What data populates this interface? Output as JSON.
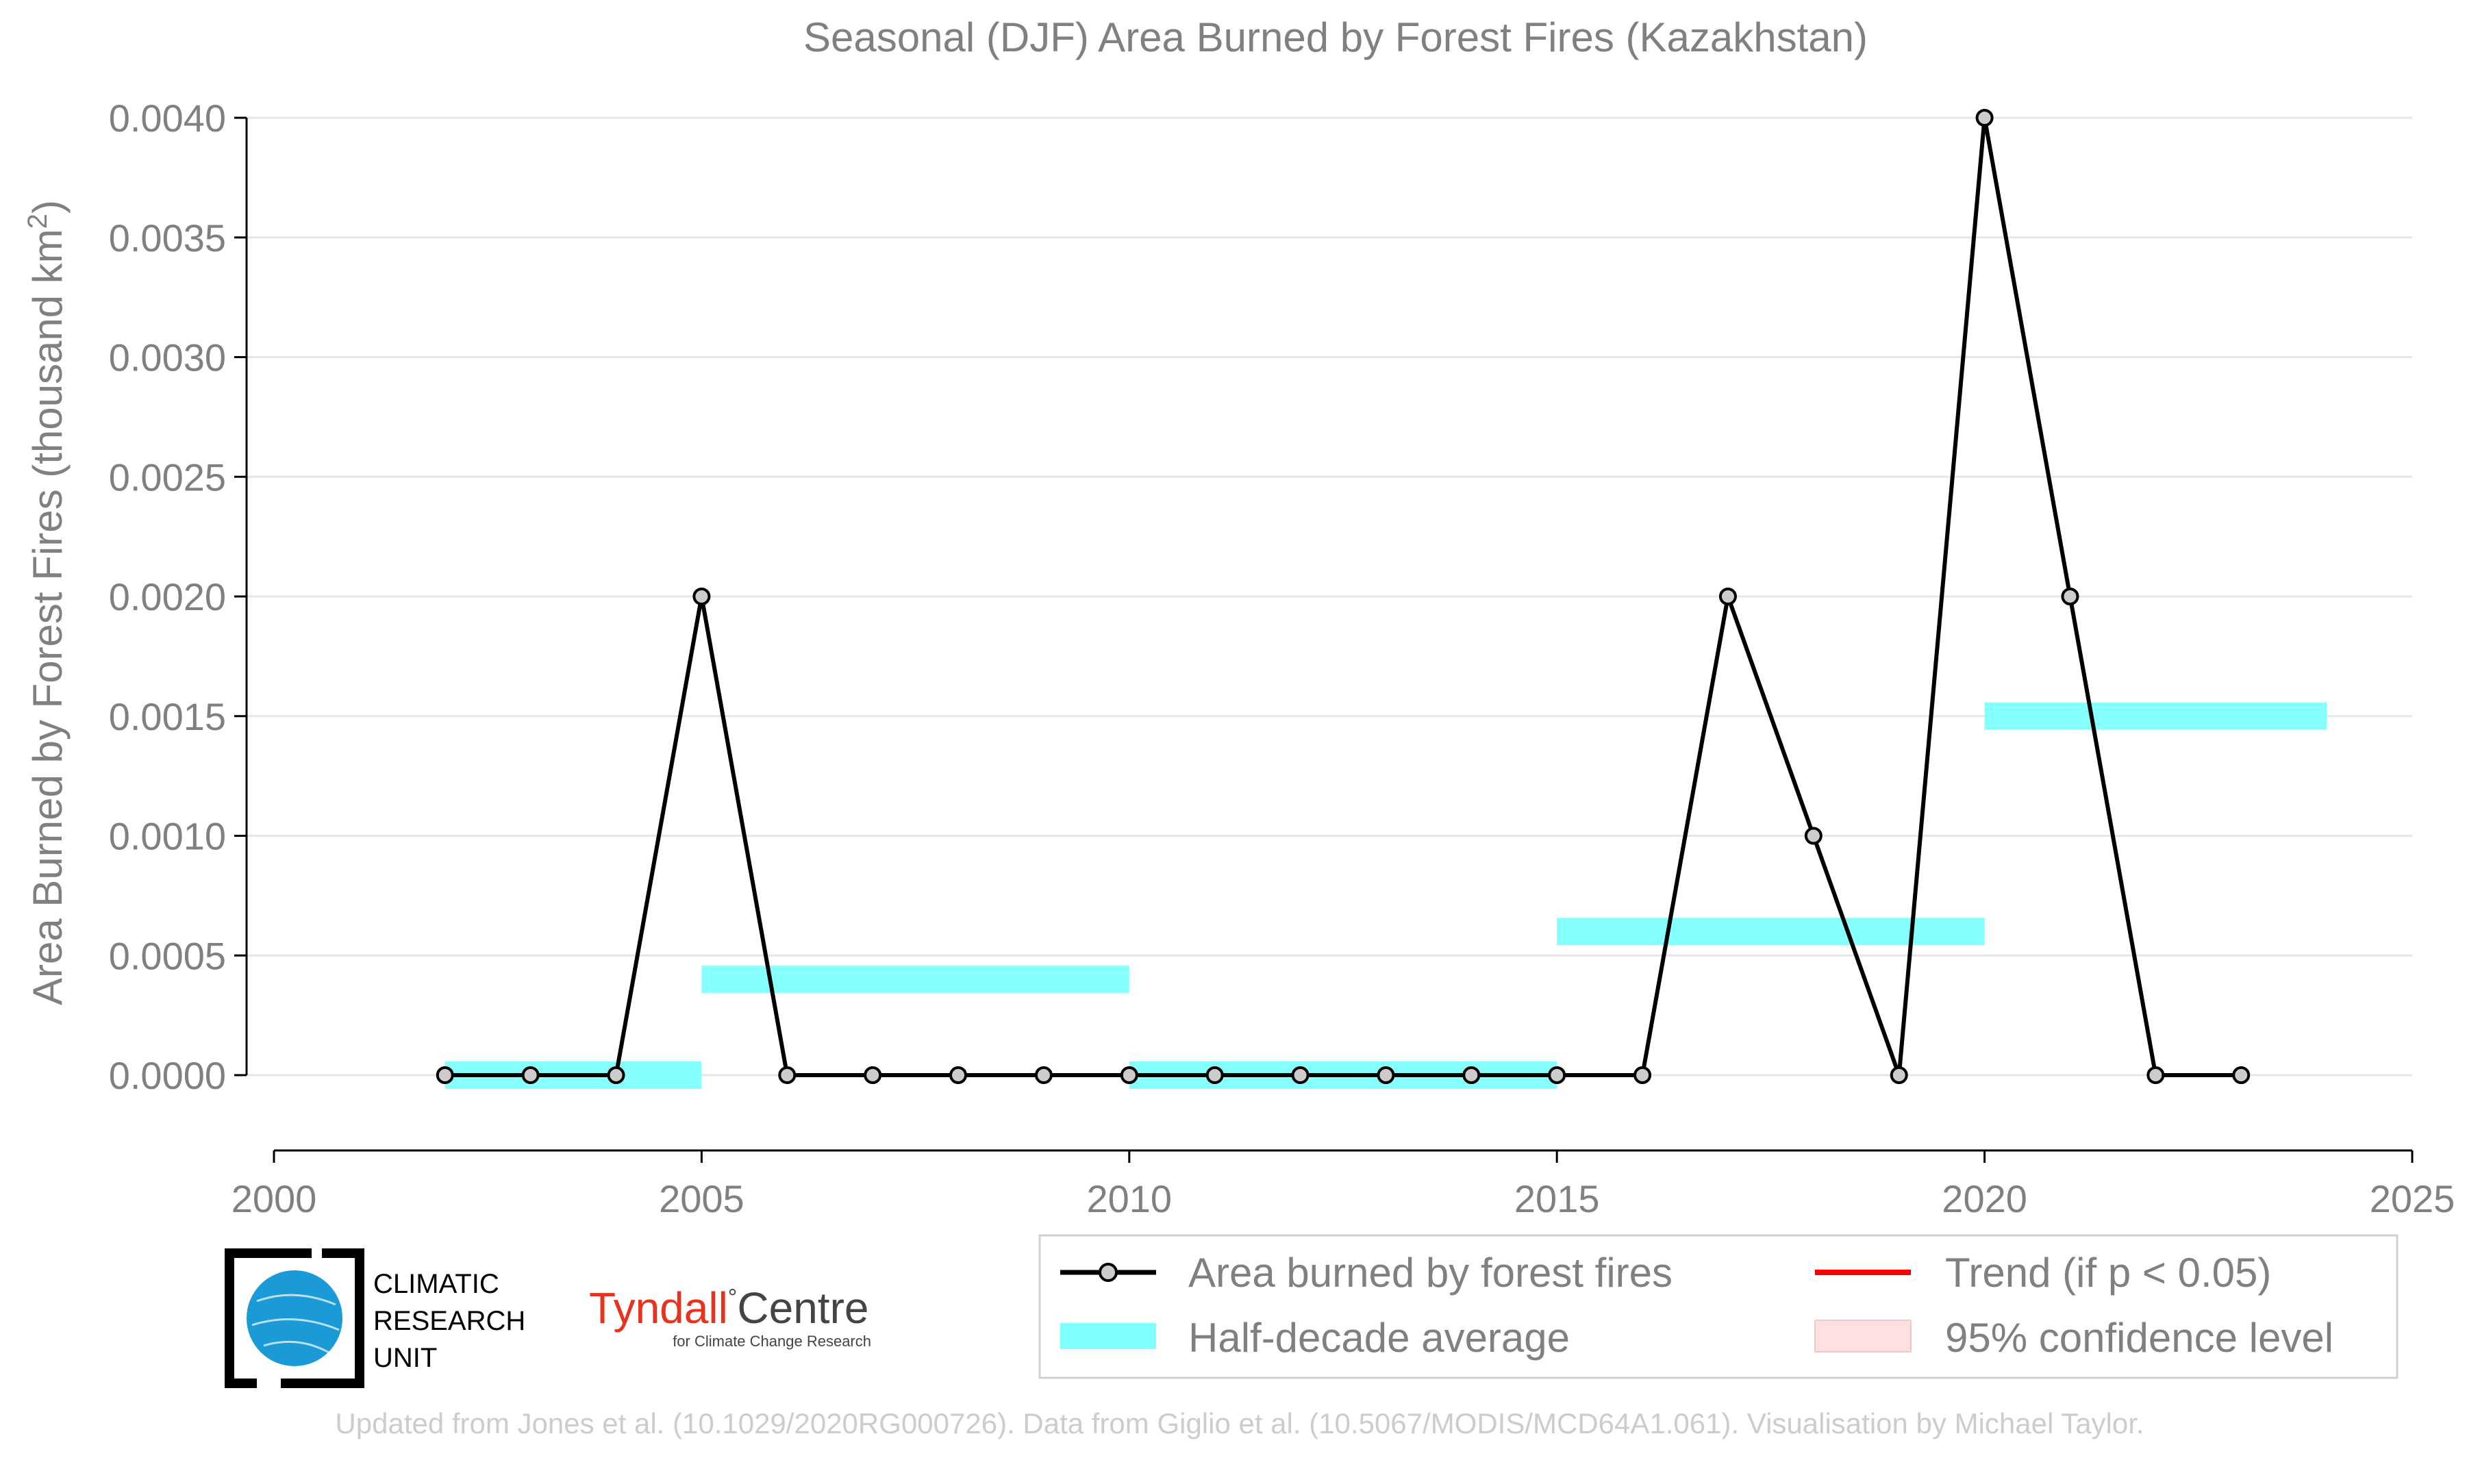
{
  "chart_data": {
    "type": "line",
    "title": "Seasonal (DJF) Area Burned by Forest Fires (Kazakhstan)",
    "ylabel_main": "Area Burned by Forest Fires (thousand km",
    "ylabel_sup": "2",
    "ylabel_close": ")",
    "xlabel": "",
    "xlim": [
      2000,
      2025
    ],
    "ylim": [
      -0.00032,
      0.004
    ],
    "x_ticks": [
      2000,
      2005,
      2010,
      2015,
      2020,
      2025
    ],
    "x_tick_labels": [
      "2000",
      "2005",
      "2010",
      "2015",
      "2020",
      "2025"
    ],
    "y_ticks": [
      0,
      0.0005,
      0.001,
      0.0015,
      0.002,
      0.0025,
      0.003,
      0.0035,
      0.004
    ],
    "y_tick_labels": [
      "0.0000",
      "0.0005",
      "0.0010",
      "0.0015",
      "0.0020",
      "0.0025",
      "0.0030",
      "0.0035",
      "0.0040"
    ],
    "grid": true,
    "legend_position": "bottom-right",
    "series": [
      {
        "name": "Area burned by forest fires",
        "color": "#000000",
        "marker_fill": "#cccccc",
        "x": [
          2002,
          2003,
          2004,
          2005,
          2006,
          2007,
          2008,
          2009,
          2010,
          2011,
          2012,
          2013,
          2014,
          2015,
          2016,
          2017,
          2018,
          2019,
          2020,
          2021,
          2022,
          2023
        ],
        "y": [
          0,
          0,
          0,
          0.002,
          0,
          0,
          0,
          0,
          0,
          0,
          0,
          0,
          0,
          0,
          0,
          0.002,
          0.001,
          0,
          0.004,
          0.002,
          0,
          0
        ]
      }
    ],
    "half_decade_averages": {
      "name": "Half-decade average",
      "color": "#80ffff",
      "segments": [
        {
          "x_start": 2002,
          "x_end": 2005,
          "value": 0
        },
        {
          "x_start": 2005,
          "x_end": 2010,
          "value": 0.0004
        },
        {
          "x_start": 2010,
          "x_end": 2015,
          "value": 0
        },
        {
          "x_start": 2015,
          "x_end": 2020,
          "value": 0.0006
        },
        {
          "x_start": 2020,
          "x_end": 2024,
          "value": 0.0015
        }
      ]
    },
    "legend": [
      {
        "label": "Area burned by forest fires",
        "kind": "line-marker",
        "color": "#000000"
      },
      {
        "label": "Trend (if p < 0.05)",
        "kind": "line",
        "color": "#ff0000"
      },
      {
        "label": "Half-decade average",
        "kind": "band",
        "color": "#80ffff"
      },
      {
        "label": "95% confidence level",
        "kind": "patch",
        "color": "#fde0e0"
      }
    ]
  },
  "logos": {
    "cru": {
      "lines": [
        "CLIMATIC",
        "RESEARCH",
        "UNIT"
      ],
      "globe_color": "#1a9ad6"
    },
    "tyndall": {
      "main_left": "Tyndall",
      "degree": "°",
      "main_right": "Centre",
      "sub": "for Climate Change Research"
    }
  },
  "footer": "Updated from Jones et al. (10.1029/2020RG000726). Data from Giglio et al. (10.5067/MODIS/MCD64A1.061). Visualisation by Michael Taylor."
}
